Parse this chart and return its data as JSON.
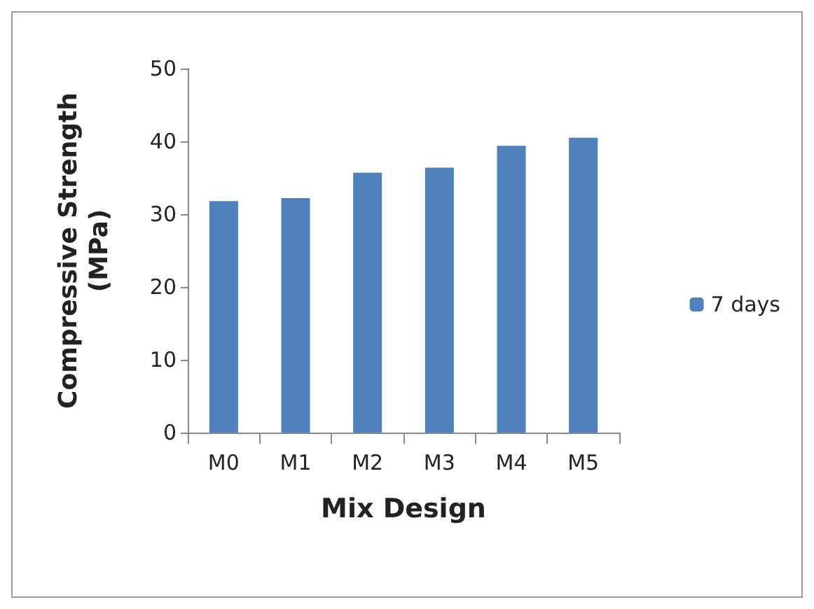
{
  "chart_data": {
    "type": "bar",
    "xlabel": "Mix Design",
    "ylabel": "Compressive Strength\n(MPa)",
    "categories": [
      "M0",
      "M1",
      "M2",
      "M3",
      "M4",
      "M5"
    ],
    "series": [
      {
        "name": "7 days",
        "color": "#4f81bd",
        "values": [
          31.8,
          32.2,
          35.7,
          36.4,
          39.4,
          40.5
        ]
      }
    ],
    "ylim": [
      0,
      50
    ],
    "yticks": [
      0,
      10,
      20,
      30,
      40,
      50
    ],
    "grid": false,
    "legend": "right"
  }
}
